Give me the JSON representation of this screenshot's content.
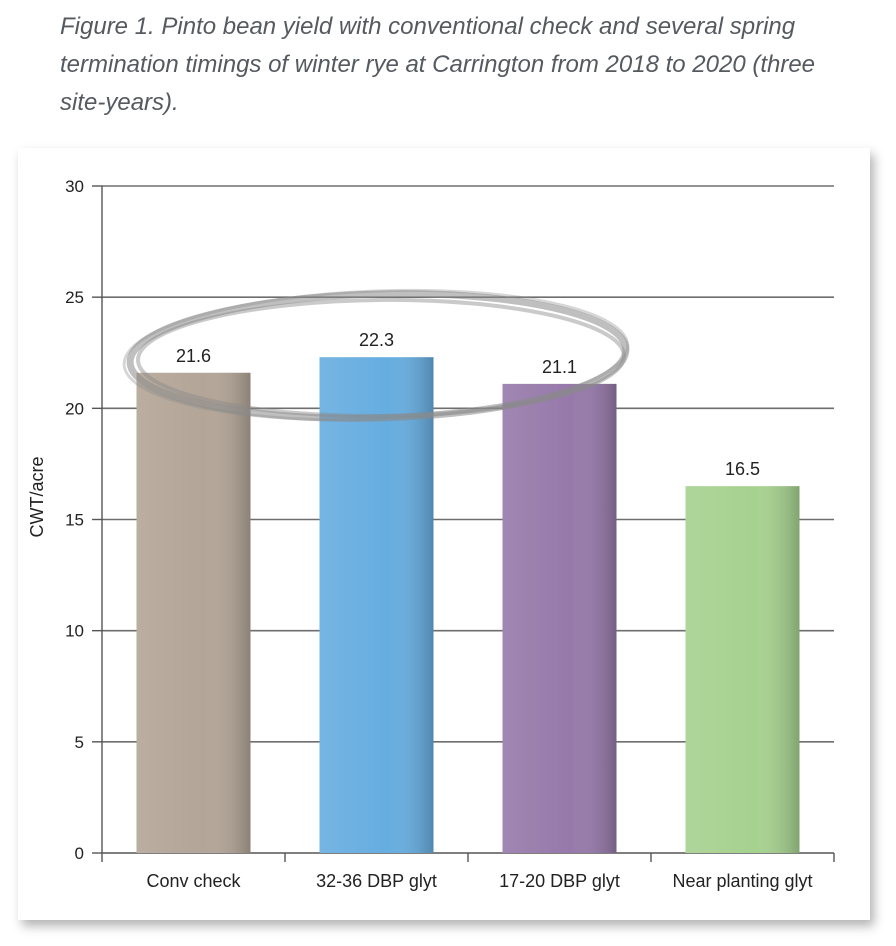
{
  "caption": "Figure 1. Pinto bean yield with conventional check and several spring termination timings of winter rye at Carrington from 2018 to 2020 (three site-years).",
  "chart_data": {
    "type": "bar",
    "title": "",
    "xlabel": "",
    "ylabel": "CWT/acre",
    "ylim": [
      0,
      30
    ],
    "yticks": [
      0,
      5,
      10,
      15,
      20,
      25,
      30
    ],
    "grid": true,
    "categories": [
      "Conv check",
      "32-36 DBP glyt",
      "17-20 DBP glyt",
      "Near planting glyt"
    ],
    "values": [
      21.6,
      22.3,
      21.1,
      16.5
    ],
    "value_labels": [
      "21.6",
      "22.3",
      "21.1",
      "16.5"
    ],
    "colors": [
      "#b3a597",
      "#66ade0",
      "#9679aa",
      "#a6d18f"
    ],
    "annotation": "grey hand-drawn ellipse circling the first three bars"
  }
}
